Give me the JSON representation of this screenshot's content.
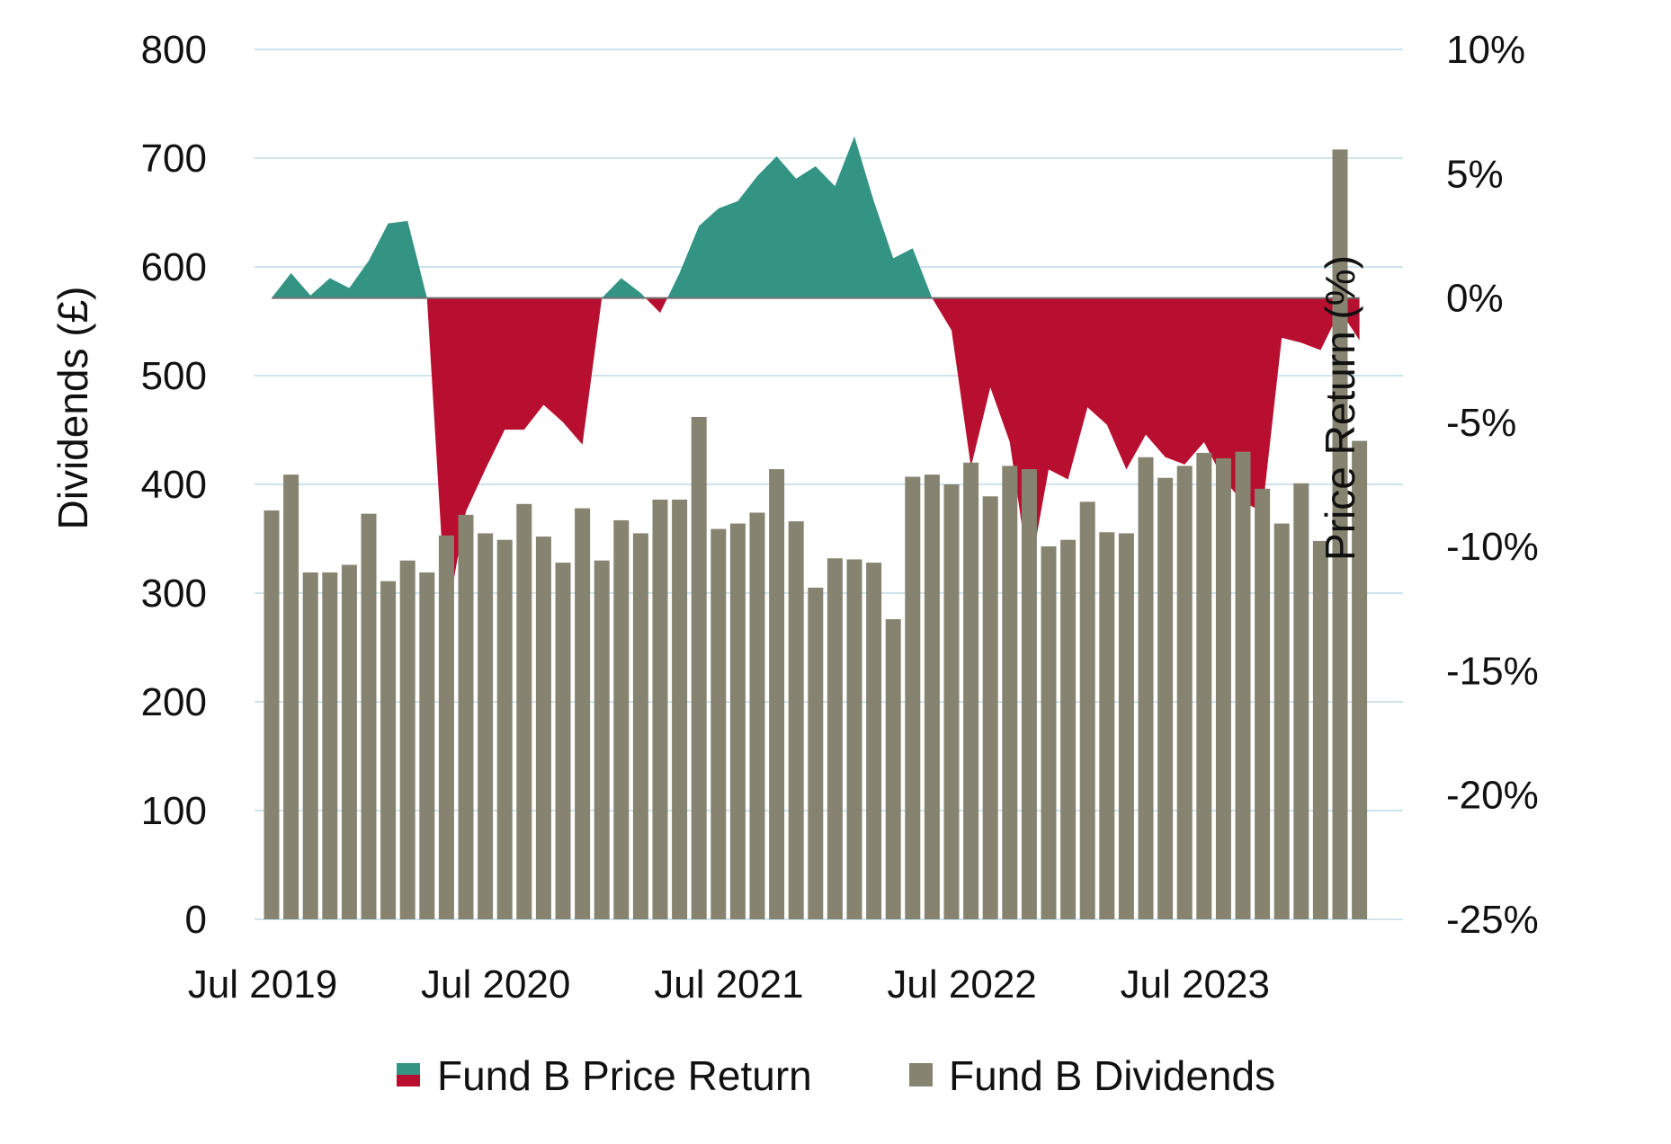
{
  "chart_data": {
    "type": "bar+area",
    "title": "",
    "x_tick_labels": [
      "Jul 2019",
      "Jul 2020",
      "Jul 2021",
      "Jul 2022",
      "Jul 2023"
    ],
    "left_axis": {
      "title": "Dividends (£)",
      "range": [
        0,
        800
      ],
      "ticks": [
        0,
        100,
        200,
        300,
        400,
        500,
        600,
        700,
        800
      ],
      "tick_labels": [
        "0",
        "100",
        "200",
        "300",
        "400",
        "500",
        "600",
        "700",
        "800"
      ]
    },
    "right_axis": {
      "title": "Price Return (%)",
      "range": [
        -25,
        10
      ],
      "ticks": [
        -25,
        -20,
        -15,
        -10,
        -5,
        0,
        5,
        10
      ],
      "tick_labels": [
        "-25%",
        "-20%",
        "-15%",
        "-10%",
        "-5%",
        "0%",
        "5%",
        "10%"
      ]
    },
    "gridlines": true,
    "legend_position": "bottom",
    "colors": {
      "positive_return": "#339483",
      "negative_return": "#b80f30",
      "dividends": "#868470",
      "grid": "#cfe4ea",
      "zero_line": "#6f7070"
    },
    "legend": [
      {
        "label": "Fund B Price Return",
        "key": "return"
      },
      {
        "label": "Fund B Dividends",
        "key": "dividends"
      }
    ],
    "series": [
      {
        "name": "Fund B Price Return",
        "axis": "right",
        "kind": "area",
        "points": [
          [
            0,
            0
          ],
          [
            1,
            1.0
          ],
          [
            2,
            0.1
          ],
          [
            3,
            0.8
          ],
          [
            4,
            0.4
          ],
          [
            5,
            1.5
          ],
          [
            6,
            3.0
          ],
          [
            7,
            3.1
          ],
          [
            8,
            0
          ],
          [
            9,
            -13.0
          ],
          [
            10,
            -8.6
          ],
          [
            11,
            -6.9
          ],
          [
            12,
            -5.3
          ],
          [
            13,
            -5.3
          ],
          [
            14,
            -4.3
          ],
          [
            15,
            -5.0
          ],
          [
            16,
            -5.9
          ],
          [
            17,
            0
          ],
          [
            18,
            0.8
          ],
          [
            19,
            0.2
          ],
          [
            20,
            -0.6
          ],
          [
            21,
            1.0
          ],
          [
            22,
            2.9
          ],
          [
            23,
            3.6
          ],
          [
            24,
            3.9
          ],
          [
            25,
            4.9
          ],
          [
            26,
            5.7
          ],
          [
            27,
            4.8
          ],
          [
            28,
            5.3
          ],
          [
            29,
            4.5
          ],
          [
            30,
            6.5
          ],
          [
            31,
            3.9
          ],
          [
            32,
            1.6
          ],
          [
            33,
            2.0
          ],
          [
            34,
            0
          ],
          [
            35,
            -1.3
          ],
          [
            36,
            -6.8
          ],
          [
            37,
            -3.6
          ],
          [
            38,
            -5.8
          ],
          [
            39,
            -11.2
          ],
          [
            40,
            -6.9
          ],
          [
            41,
            -7.3
          ],
          [
            42,
            -4.4
          ],
          [
            43,
            -5.1
          ],
          [
            44,
            -6.9
          ],
          [
            45,
            -5.5
          ],
          [
            46,
            -6.4
          ],
          [
            47,
            -6.7
          ],
          [
            48,
            -5.8
          ],
          [
            49,
            -7.3
          ],
          [
            50,
            -8.2
          ],
          [
            51,
            -8.6
          ],
          [
            52,
            -1.6
          ],
          [
            53,
            -1.8
          ],
          [
            54,
            -2.1
          ],
          [
            55,
            -0.5
          ],
          [
            56,
            -1.7
          ]
        ]
      },
      {
        "name": "Fund B Dividends",
        "axis": "left",
        "kind": "bar",
        "values": [
          376,
          409,
          319,
          319,
          326,
          373,
          311,
          330,
          319,
          353,
          372,
          355,
          349,
          382,
          352,
          328,
          378,
          330,
          367,
          355,
          386,
          386,
          462,
          359,
          364,
          374,
          414,
          366,
          305,
          332,
          331,
          328,
          276,
          407,
          409,
          400,
          420,
          389,
          417,
          414,
          343,
          349,
          384,
          356,
          355,
          425,
          406,
          417,
          429,
          424,
          430,
          396,
          364,
          401,
          348,
          708,
          440
        ]
      }
    ]
  }
}
